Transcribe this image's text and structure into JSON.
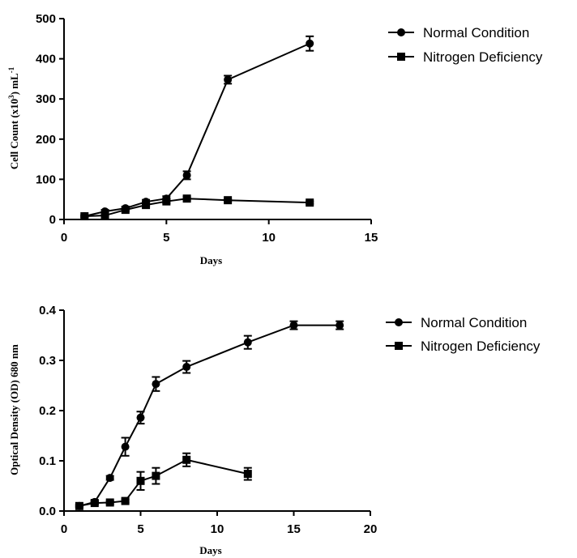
{
  "chart_data": [
    {
      "type": "line",
      "xlabel": "Days",
      "ylabel": "Cell Count (x10",
      "ylabel_sup": "3",
      "ylabel_after": ") mL",
      "ylabel_sup2": "-1",
      "xlim": [
        0,
        15
      ],
      "ylim": [
        0,
        500
      ],
      "xticks": [
        0,
        5,
        10,
        15
      ],
      "yticks": [
        0,
        100,
        200,
        300,
        400,
        500
      ],
      "grid": false,
      "legend": "top-right",
      "series": [
        {
          "name": "Normal Condition",
          "marker": "circle",
          "x": [
            1,
            2,
            3,
            4,
            5,
            6,
            8,
            12
          ],
          "y": [
            8,
            20,
            28,
            44,
            52,
            110,
            348,
            438
          ],
          "err": [
            3,
            4,
            4,
            5,
            6,
            10,
            10,
            18
          ]
        },
        {
          "name": "Nitrogen Deficiency",
          "marker": "square",
          "x": [
            1,
            2,
            3,
            4,
            5,
            6,
            8,
            12
          ],
          "y": [
            8,
            10,
            24,
            36,
            45,
            52,
            48,
            42
          ],
          "err": [
            2,
            2,
            3,
            4,
            4,
            4,
            3,
            3
          ]
        }
      ]
    },
    {
      "type": "line",
      "xlabel": "Days",
      "ylabel": "Optical Density (OD) 680 nm",
      "xlim": [
        0,
        20
      ],
      "ylim": [
        0,
        0.4
      ],
      "xticks": [
        0,
        5,
        10,
        15,
        20
      ],
      "yticks": [
        "0.0",
        "0.1",
        "0.2",
        "0.3",
        "0.4"
      ],
      "grid": false,
      "legend": "top-right",
      "series": [
        {
          "name": "Normal Condition",
          "marker": "circle",
          "x": [
            1,
            2,
            3,
            4,
            5,
            6,
            8,
            12,
            15,
            18
          ],
          "y": [
            0.01,
            0.018,
            0.066,
            0.128,
            0.186,
            0.253,
            0.287,
            0.336,
            0.37,
            0.37
          ],
          "err": [
            0.002,
            0.003,
            0.004,
            0.018,
            0.012,
            0.014,
            0.012,
            0.013,
            0.008,
            0.008
          ]
        },
        {
          "name": "Nitrogen Deficiency",
          "marker": "square",
          "x": [
            1,
            2,
            3,
            4,
            5,
            6,
            8,
            12
          ],
          "y": [
            0.01,
            0.016,
            0.017,
            0.02,
            0.06,
            0.07,
            0.102,
            0.074
          ],
          "err": [
            0.002,
            0.003,
            0.003,
            0.003,
            0.018,
            0.016,
            0.013,
            0.012
          ]
        }
      ]
    }
  ]
}
